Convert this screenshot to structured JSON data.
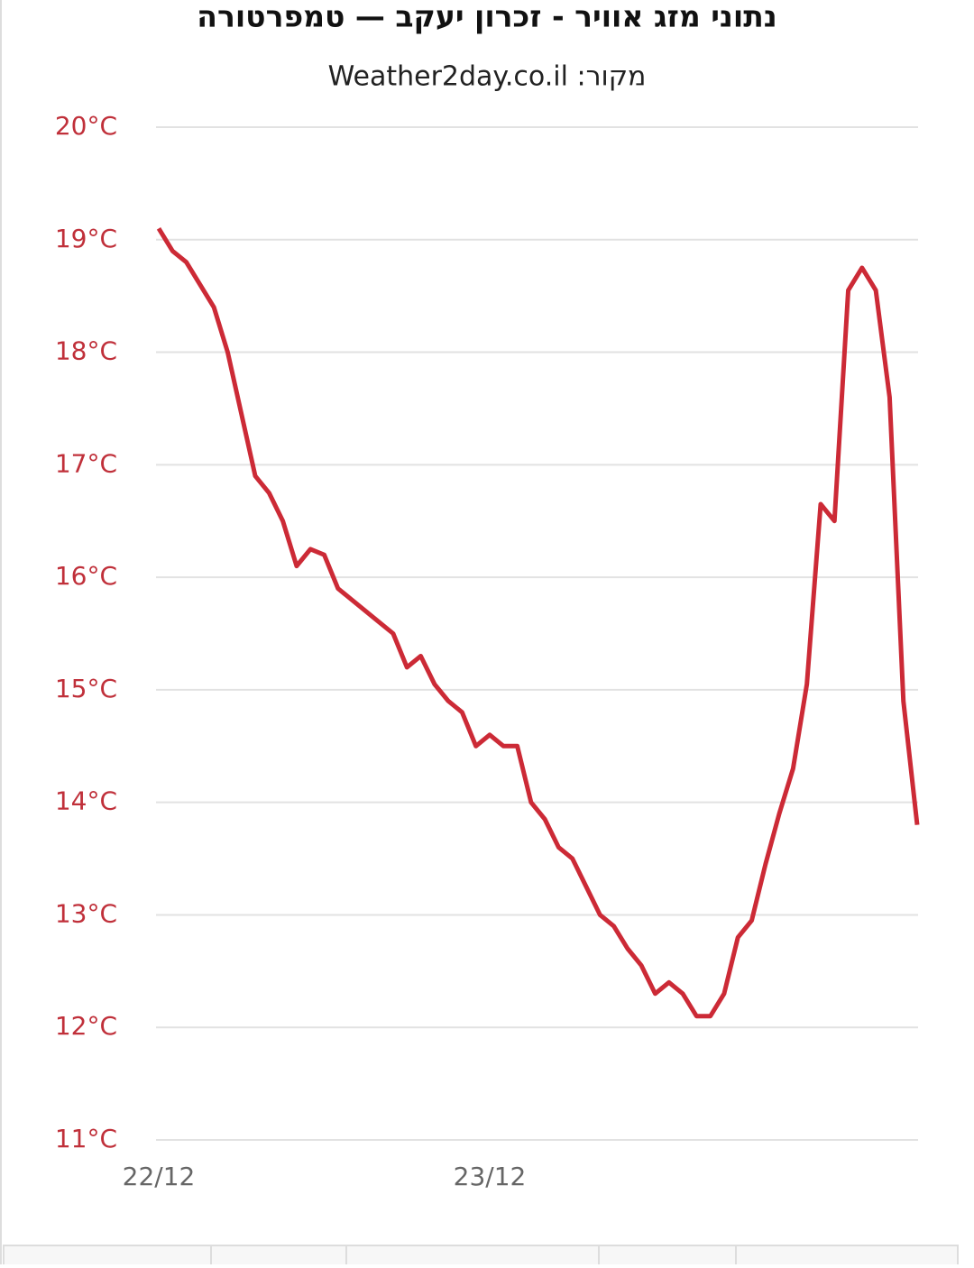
{
  "chart_data": {
    "type": "line",
    "title": "נתוני מזג אוויר - זכרון יעקב — טמפרטורה",
    "subtitle": "מקור: Weather2day.co.il",
    "x": [
      0,
      1,
      2,
      3,
      4,
      5,
      6,
      7,
      8,
      9,
      10,
      11,
      12,
      13,
      14,
      15,
      16,
      17,
      18,
      19,
      20,
      21,
      22,
      23,
      24,
      25,
      26,
      27,
      28,
      29,
      30,
      31,
      32,
      33,
      34,
      35,
      36,
      37,
      38,
      39,
      40,
      41,
      42,
      43,
      44,
      45,
      46,
      47,
      48,
      49,
      50,
      51,
      52,
      53,
      54,
      55
    ],
    "series": [
      {
        "color": "#cc2a36",
        "values": [
          19.1,
          18.9,
          18.8,
          18.6,
          18.4,
          18.0,
          17.45,
          16.9,
          16.75,
          16.5,
          16.1,
          16.25,
          16.2,
          15.9,
          15.8,
          15.7,
          15.6,
          15.5,
          15.2,
          15.3,
          15.05,
          14.9,
          14.8,
          14.5,
          14.6,
          14.5,
          14.5,
          14.0,
          13.85,
          13.6,
          13.5,
          13.25,
          13.0,
          12.9,
          12.7,
          12.55,
          12.3,
          12.4,
          12.3,
          12.1,
          12.1,
          12.3,
          12.8,
          12.95,
          13.45,
          13.9,
          14.3,
          15.05,
          16.65,
          16.5,
          18.55,
          18.75,
          18.55,
          17.6,
          14.9,
          13.8
        ]
      }
    ],
    "xlim": [
      0,
      55
    ],
    "xticks": [
      {
        "value": 0,
        "label": "22/12"
      },
      {
        "value": 24,
        "label": "23/12"
      }
    ],
    "ylim": [
      11,
      20
    ],
    "yticks": [
      {
        "value": 11,
        "label": "11°C"
      },
      {
        "value": 12,
        "label": "12°C"
      },
      {
        "value": 13,
        "label": "13°C"
      },
      {
        "value": 14,
        "label": "14°C"
      },
      {
        "value": 15,
        "label": "15°C"
      },
      {
        "value": 16,
        "label": "16°C"
      },
      {
        "value": 17,
        "label": "17°C"
      },
      {
        "value": 18,
        "label": "18°C"
      },
      {
        "value": 19,
        "label": "19°C"
      },
      {
        "value": 20,
        "label": "20°C"
      }
    ],
    "grid": true
  }
}
